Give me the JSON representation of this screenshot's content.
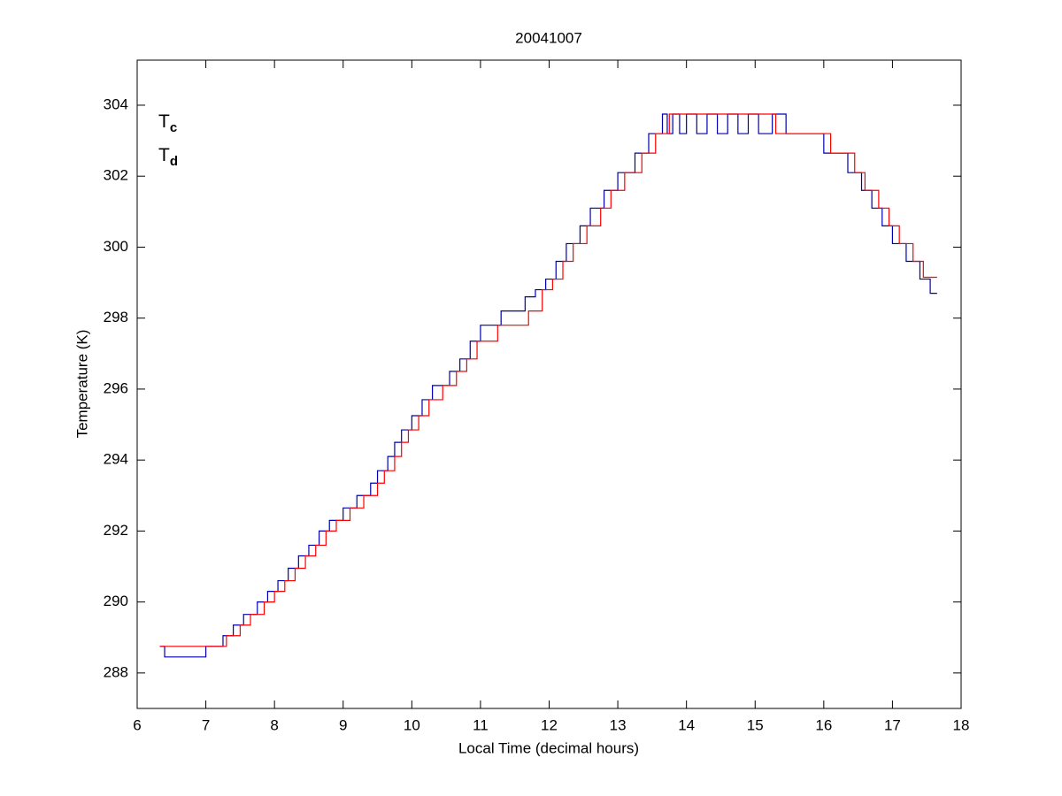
{
  "chart_data": {
    "type": "line",
    "title": "20041007",
    "x_label": "Local Time (decimal hours)",
    "y_label": "Temperature (K)",
    "xlim": [
      6,
      18
    ],
    "ylim": [
      287,
      305.27
    ],
    "xticks": [
      6,
      7,
      8,
      9,
      10,
      11,
      12,
      13,
      14,
      15,
      16,
      17,
      18
    ],
    "yticks": [
      288,
      290,
      292,
      294,
      296,
      298,
      300,
      302,
      304
    ],
    "drawstyle": "steps-post",
    "legend": "upper left",
    "series": [
      {
        "name": "Tc",
        "color": "#0000b0",
        "x": [
          6.33,
          6.4,
          7.0,
          7.25,
          7.4,
          7.55,
          7.75,
          7.9,
          8.05,
          8.2,
          8.35,
          8.5,
          8.65,
          8.8,
          9.0,
          9.2,
          9.4,
          9.5,
          9.65,
          9.75,
          9.85,
          10.0,
          10.15,
          10.3,
          10.55,
          10.7,
          10.85,
          11.0,
          11.15,
          11.3,
          11.65,
          11.8,
          11.95,
          12.1,
          12.25,
          12.45,
          12.6,
          12.8,
          13.0,
          13.25,
          13.45,
          13.65,
          13.72,
          13.8,
          13.9,
          14.0,
          14.15,
          14.3,
          14.45,
          14.6,
          14.75,
          14.9,
          15.05,
          15.25,
          15.45,
          15.6,
          16.0,
          16.35,
          16.55,
          16.7,
          16.85,
          17.0,
          17.2,
          17.4,
          17.55,
          17.65
        ],
        "values": [
          288.75,
          288.45,
          288.75,
          289.05,
          289.35,
          289.65,
          290.0,
          290.3,
          290.6,
          290.95,
          291.3,
          291.6,
          292.0,
          292.3,
          292.65,
          293.0,
          293.35,
          293.7,
          294.1,
          294.5,
          294.85,
          295.25,
          295.7,
          296.1,
          296.5,
          296.85,
          297.35,
          297.8,
          297.8,
          298.2,
          298.6,
          298.8,
          299.1,
          299.6,
          300.1,
          300.6,
          301.1,
          301.6,
          302.1,
          302.65,
          303.2,
          303.75,
          303.2,
          303.75,
          303.2,
          303.75,
          303.2,
          303.75,
          303.2,
          303.75,
          303.2,
          303.75,
          303.2,
          303.75,
          303.2,
          303.2,
          302.65,
          302.1,
          301.6,
          301.1,
          300.6,
          300.1,
          299.6,
          299.1,
          298.7,
          298.7
        ]
      },
      {
        "name": "Td",
        "color": "#ff0000",
        "x": [
          6.33,
          7.3,
          7.5,
          7.65,
          7.85,
          8.0,
          8.15,
          8.3,
          8.45,
          8.6,
          8.75,
          8.9,
          9.1,
          9.3,
          9.5,
          9.6,
          9.75,
          9.85,
          9.95,
          10.1,
          10.25,
          10.45,
          10.65,
          10.8,
          10.95,
          11.25,
          11.7,
          11.9,
          12.05,
          12.2,
          12.35,
          12.55,
          12.75,
          12.9,
          13.1,
          13.35,
          13.55,
          13.75,
          15.3,
          16.1,
          16.45,
          16.6,
          16.8,
          16.95,
          17.1,
          17.3,
          17.45,
          17.65
        ],
        "values": [
          288.75,
          289.05,
          289.35,
          289.65,
          290.0,
          290.3,
          290.6,
          290.95,
          291.3,
          291.6,
          292.0,
          292.3,
          292.65,
          293.0,
          293.35,
          293.7,
          294.1,
          294.5,
          294.85,
          295.25,
          295.7,
          296.1,
          296.5,
          296.85,
          297.35,
          297.8,
          298.2,
          298.8,
          299.1,
          299.6,
          300.1,
          300.6,
          301.1,
          301.6,
          302.1,
          302.65,
          303.2,
          303.75,
          303.2,
          302.65,
          302.1,
          301.6,
          301.1,
          300.6,
          300.1,
          299.6,
          299.15,
          299.15
        ]
      }
    ]
  }
}
